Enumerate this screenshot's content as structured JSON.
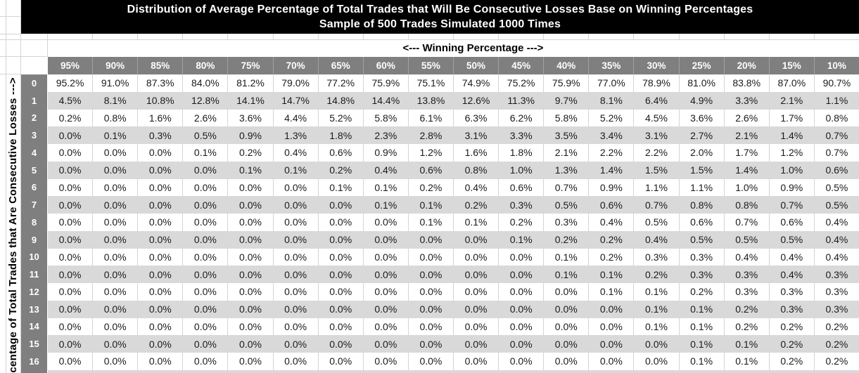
{
  "title": {
    "line1": "Distribution of Average Percentage of Total Trades that Will Be Consecutive Losses Base on Winning Percentages",
    "line2": "Sample of 500 Trades Simulated 1000 Times"
  },
  "axes": {
    "column_axis_label": "<--- Winning Percentage --->",
    "row_axis_label": "centage of Total Trades that Are Consecutive Losses --->"
  },
  "table": {
    "column_headers": [
      "95%",
      "90%",
      "85%",
      "80%",
      "75%",
      "70%",
      "65%",
      "60%",
      "55%",
      "50%",
      "45%",
      "40%",
      "35%",
      "30%",
      "25%",
      "20%",
      "15%",
      "10%"
    ],
    "row_headers": [
      "0",
      "1",
      "2",
      "3",
      "4",
      "5",
      "6",
      "7",
      "8",
      "9",
      "10",
      "11",
      "12",
      "13",
      "14",
      "15",
      "16"
    ],
    "rows": [
      [
        "95.2%",
        "91.0%",
        "87.3%",
        "84.0%",
        "81.2%",
        "79.0%",
        "77.2%",
        "75.9%",
        "75.1%",
        "74.9%",
        "75.2%",
        "75.9%",
        "77.0%",
        "78.9%",
        "81.0%",
        "83.8%",
        "87.0%",
        "90.7%"
      ],
      [
        "4.5%",
        "8.1%",
        "10.8%",
        "12.8%",
        "14.1%",
        "14.7%",
        "14.8%",
        "14.4%",
        "13.8%",
        "12.6%",
        "11.3%",
        "9.7%",
        "8.1%",
        "6.4%",
        "4.9%",
        "3.3%",
        "2.1%",
        "1.1%"
      ],
      [
        "0.2%",
        "0.8%",
        "1.6%",
        "2.6%",
        "3.6%",
        "4.4%",
        "5.2%",
        "5.8%",
        "6.1%",
        "6.3%",
        "6.2%",
        "5.8%",
        "5.2%",
        "4.5%",
        "3.6%",
        "2.6%",
        "1.7%",
        "0.8%"
      ],
      [
        "0.0%",
        "0.1%",
        "0.3%",
        "0.5%",
        "0.9%",
        "1.3%",
        "1.8%",
        "2.3%",
        "2.8%",
        "3.1%",
        "3.3%",
        "3.5%",
        "3.4%",
        "3.1%",
        "2.7%",
        "2.1%",
        "1.4%",
        "0.7%"
      ],
      [
        "0.0%",
        "0.0%",
        "0.0%",
        "0.1%",
        "0.2%",
        "0.4%",
        "0.6%",
        "0.9%",
        "1.2%",
        "1.6%",
        "1.8%",
        "2.1%",
        "2.2%",
        "2.2%",
        "2.0%",
        "1.7%",
        "1.2%",
        "0.7%"
      ],
      [
        "0.0%",
        "0.0%",
        "0.0%",
        "0.0%",
        "0.1%",
        "0.1%",
        "0.2%",
        "0.4%",
        "0.6%",
        "0.8%",
        "1.0%",
        "1.3%",
        "1.4%",
        "1.5%",
        "1.5%",
        "1.4%",
        "1.0%",
        "0.6%"
      ],
      [
        "0.0%",
        "0.0%",
        "0.0%",
        "0.0%",
        "0.0%",
        "0.0%",
        "0.1%",
        "0.1%",
        "0.2%",
        "0.4%",
        "0.6%",
        "0.7%",
        "0.9%",
        "1.1%",
        "1.1%",
        "1.0%",
        "0.9%",
        "0.5%"
      ],
      [
        "0.0%",
        "0.0%",
        "0.0%",
        "0.0%",
        "0.0%",
        "0.0%",
        "0.0%",
        "0.1%",
        "0.1%",
        "0.2%",
        "0.3%",
        "0.5%",
        "0.6%",
        "0.7%",
        "0.8%",
        "0.8%",
        "0.7%",
        "0.5%"
      ],
      [
        "0.0%",
        "0.0%",
        "0.0%",
        "0.0%",
        "0.0%",
        "0.0%",
        "0.0%",
        "0.0%",
        "0.1%",
        "0.1%",
        "0.2%",
        "0.3%",
        "0.4%",
        "0.5%",
        "0.6%",
        "0.7%",
        "0.6%",
        "0.4%"
      ],
      [
        "0.0%",
        "0.0%",
        "0.0%",
        "0.0%",
        "0.0%",
        "0.0%",
        "0.0%",
        "0.0%",
        "0.0%",
        "0.0%",
        "0.1%",
        "0.2%",
        "0.2%",
        "0.4%",
        "0.5%",
        "0.5%",
        "0.5%",
        "0.4%"
      ],
      [
        "0.0%",
        "0.0%",
        "0.0%",
        "0.0%",
        "0.0%",
        "0.0%",
        "0.0%",
        "0.0%",
        "0.0%",
        "0.0%",
        "0.0%",
        "0.1%",
        "0.2%",
        "0.3%",
        "0.3%",
        "0.4%",
        "0.4%",
        "0.4%"
      ],
      [
        "0.0%",
        "0.0%",
        "0.0%",
        "0.0%",
        "0.0%",
        "0.0%",
        "0.0%",
        "0.0%",
        "0.0%",
        "0.0%",
        "0.0%",
        "0.1%",
        "0.1%",
        "0.2%",
        "0.3%",
        "0.3%",
        "0.4%",
        "0.3%"
      ],
      [
        "0.0%",
        "0.0%",
        "0.0%",
        "0.0%",
        "0.0%",
        "0.0%",
        "0.0%",
        "0.0%",
        "0.0%",
        "0.0%",
        "0.0%",
        "0.0%",
        "0.1%",
        "0.1%",
        "0.2%",
        "0.3%",
        "0.3%",
        "0.3%"
      ],
      [
        "0.0%",
        "0.0%",
        "0.0%",
        "0.0%",
        "0.0%",
        "0.0%",
        "0.0%",
        "0.0%",
        "0.0%",
        "0.0%",
        "0.0%",
        "0.0%",
        "0.0%",
        "0.1%",
        "0.1%",
        "0.2%",
        "0.3%",
        "0.3%"
      ],
      [
        "0.0%",
        "0.0%",
        "0.0%",
        "0.0%",
        "0.0%",
        "0.0%",
        "0.0%",
        "0.0%",
        "0.0%",
        "0.0%",
        "0.0%",
        "0.0%",
        "0.0%",
        "0.1%",
        "0.1%",
        "0.2%",
        "0.2%",
        "0.2%"
      ],
      [
        "0.0%",
        "0.0%",
        "0.0%",
        "0.0%",
        "0.0%",
        "0.0%",
        "0.0%",
        "0.0%",
        "0.0%",
        "0.0%",
        "0.0%",
        "0.0%",
        "0.0%",
        "0.0%",
        "0.1%",
        "0.1%",
        "0.2%",
        "0.2%"
      ],
      [
        "0.0%",
        "0.0%",
        "0.0%",
        "0.0%",
        "0.0%",
        "0.0%",
        "0.0%",
        "0.0%",
        "0.0%",
        "0.0%",
        "0.0%",
        "0.0%",
        "0.0%",
        "0.0%",
        "0.1%",
        "0.1%",
        "0.2%",
        "0.2%"
      ]
    ]
  },
  "colors": {
    "title_bg": "#000000",
    "title_text": "#ffffff",
    "header_bg": "#7f7f7f",
    "header_text": "#ffffff",
    "stripe_row_bg": "#d9d9d9",
    "white_row_bg": "#ffffff",
    "gridline": "#d4d4d4",
    "cell_text": "#1a1a1a"
  }
}
